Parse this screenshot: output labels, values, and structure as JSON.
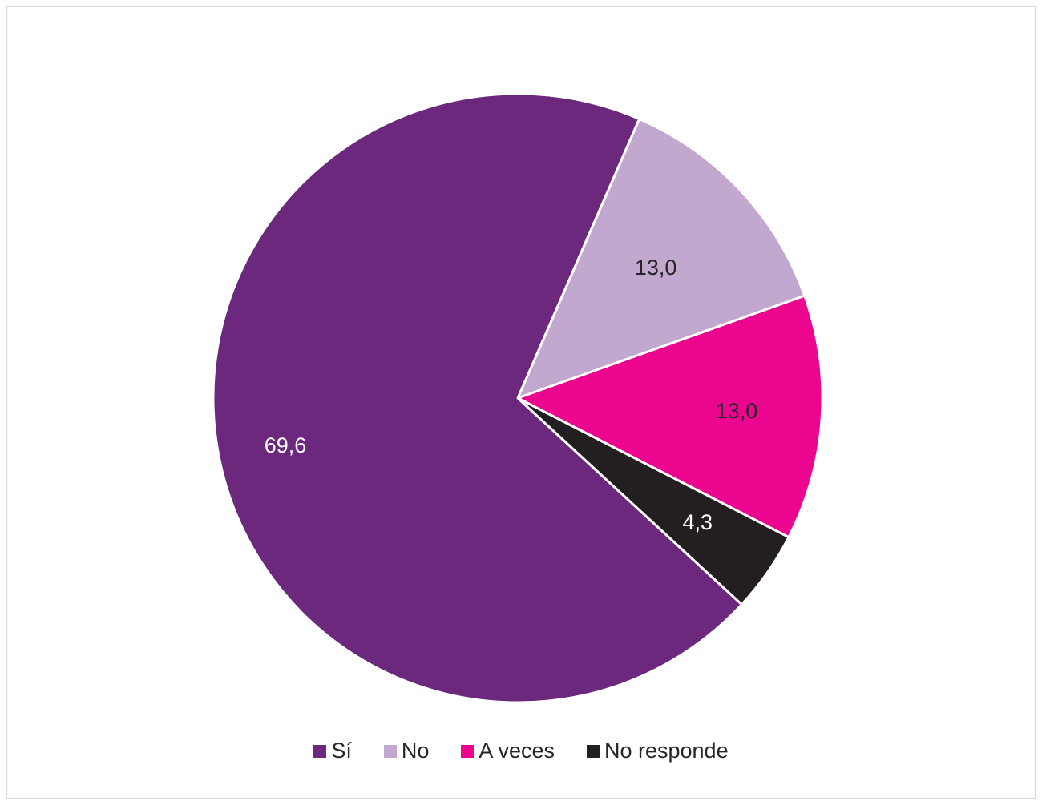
{
  "chart_data": {
    "type": "pie",
    "title": "",
    "slices": [
      {
        "label": "Sí",
        "value": 69.6,
        "display": "69,6",
        "color": "#6b287d",
        "label_color": "#ffffff"
      },
      {
        "label": "No",
        "value": 13.0,
        "display": "13,0",
        "color": "#c2a7cf",
        "label_color": "#262626"
      },
      {
        "label": "A veces",
        "value": 13.0,
        "display": "13,0",
        "color": "#ec058e",
        "label_color": "#262626"
      },
      {
        "label": "No responde",
        "value": 4.3,
        "display": "4,3",
        "color": "#231f20",
        "label_color": "#ffffff"
      }
    ],
    "legend_position": "bottom"
  }
}
